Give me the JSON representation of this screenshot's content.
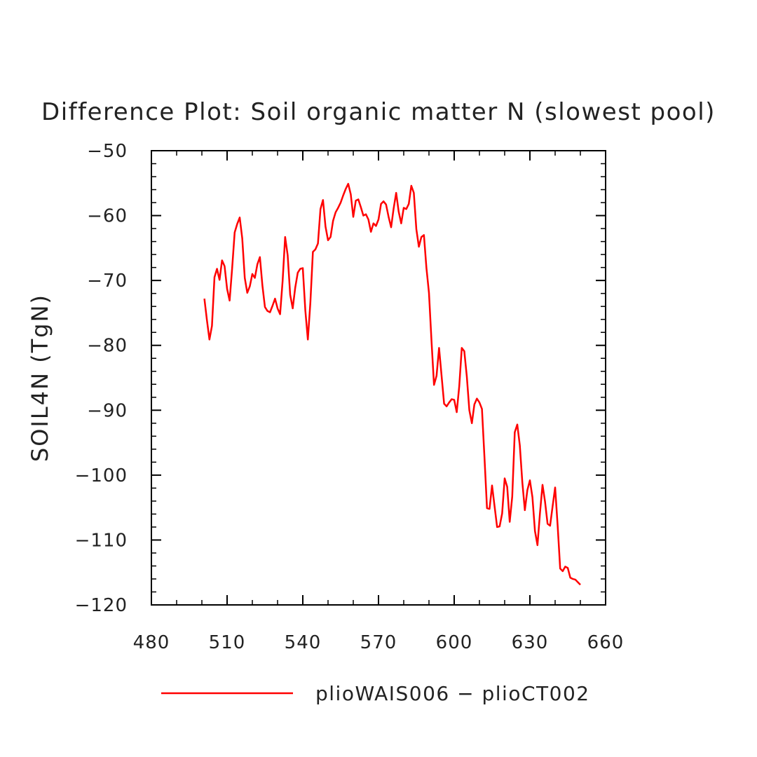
{
  "chart_data": {
    "type": "line",
    "title": "Difference Plot: Soil organic matter N (slowest pool)",
    "ylabel": "SOIL4N   (TgN)",
    "xlabel": "",
    "xlim": [
      480,
      660
    ],
    "ylim": [
      -120,
      -50
    ],
    "x_ticks": [
      480,
      510,
      540,
      570,
      600,
      630,
      660
    ],
    "y_ticks": [
      -50,
      -60,
      -70,
      -80,
      -90,
      -100,
      -110,
      -120
    ],
    "x_tick_labels": [
      "480",
      "510",
      "540",
      "570",
      "600",
      "630",
      "660"
    ],
    "y_tick_labels": [
      "−50",
      "−60",
      "−70",
      "−80",
      "−90",
      "−100",
      "−110",
      "−120"
    ],
    "grid": false,
    "legend_position": "bottom",
    "series": [
      {
        "name": "plioWAIS006 − plioCT002",
        "color": "#ff0000",
        "x": [
          501,
          502,
          503,
          504,
          505,
          506,
          507,
          508,
          509,
          510,
          511,
          512,
          513,
          514,
          515,
          516,
          517,
          518,
          519,
          520,
          521,
          522,
          523,
          524,
          525,
          526,
          527,
          528,
          529,
          530,
          531,
          532,
          533,
          534,
          535,
          536,
          537,
          538,
          539,
          540,
          541,
          542,
          543,
          544,
          545,
          546,
          547,
          548,
          549,
          550,
          551,
          552,
          553,
          554,
          555,
          556,
          557,
          558,
          559,
          560,
          561,
          562,
          563,
          564,
          565,
          566,
          567,
          568,
          569,
          570,
          571,
          572,
          573,
          574,
          575,
          576,
          577,
          578,
          579,
          580,
          581,
          582,
          583,
          584,
          585,
          586,
          587,
          588,
          589,
          590,
          591,
          592,
          593,
          594,
          595,
          596,
          597,
          598,
          599,
          600,
          601,
          602,
          603,
          604,
          605,
          606,
          607,
          608,
          609,
          610,
          611,
          612,
          613,
          614,
          615,
          616,
          617,
          618,
          619,
          620,
          621,
          622,
          623,
          624,
          625,
          626,
          627,
          628,
          629,
          630,
          631,
          632,
          633,
          634,
          635,
          636,
          637,
          638,
          639,
          640,
          641,
          642,
          643,
          644,
          645,
          646,
          647,
          648,
          649,
          650
        ],
        "y": [
          -72.8,
          -76.1,
          -79.1,
          -77.0,
          -69.5,
          -68.2,
          -69.9,
          -66.9,
          -67.8,
          -71.3,
          -73.1,
          -68.1,
          -62.6,
          -61.3,
          -60.3,
          -63.5,
          -69.6,
          -71.9,
          -70.9,
          -69.0,
          -69.6,
          -67.5,
          -66.4,
          -70.8,
          -74.1,
          -74.7,
          -74.9,
          -73.9,
          -72.8,
          -74.3,
          -75.2,
          -70.1,
          -63.3,
          -66.1,
          -72.2,
          -74.3,
          -71.1,
          -68.8,
          -68.2,
          -68.1,
          -74.6,
          -79.1,
          -73.4,
          -65.6,
          -65.2,
          -64.3,
          -59.0,
          -57.6,
          -61.7,
          -63.8,
          -63.3,
          -60.8,
          -59.5,
          -58.8,
          -58.0,
          -56.9,
          -55.9,
          -55.1,
          -56.7,
          -60.2,
          -57.7,
          -57.5,
          -58.7,
          -60.0,
          -59.8,
          -60.6,
          -62.5,
          -61.2,
          -61.6,
          -60.6,
          -58.2,
          -57.8,
          -58.3,
          -60.2,
          -61.8,
          -58.9,
          -56.5,
          -59.4,
          -61.2,
          -58.8,
          -59.0,
          -58.2,
          -55.4,
          -56.5,
          -62.1,
          -64.8,
          -63.3,
          -63.0,
          -68.1,
          -71.9,
          -79.3,
          -86.1,
          -84.7,
          -80.4,
          -84.7,
          -89.0,
          -89.4,
          -88.8,
          -88.3,
          -88.4,
          -90.3,
          -86.3,
          -80.4,
          -80.9,
          -84.8,
          -90.0,
          -92.0,
          -89.1,
          -88.2,
          -88.8,
          -89.8,
          -97.3,
          -105.1,
          -105.2,
          -101.6,
          -104.8,
          -108.0,
          -107.9,
          -105.9,
          -100.5,
          -101.8,
          -107.2,
          -103.3,
          -93.4,
          -92.2,
          -95.4,
          -101.1,
          -105.4,
          -102.3,
          -100.8,
          -103.4,
          -108.6,
          -110.8,
          -105.8,
          -101.5,
          -104.1,
          -107.5,
          -107.8,
          -104.8,
          -101.9,
          -107.8,
          -114.4,
          -114.8,
          -114.1,
          -114.3,
          -115.8,
          -116.0,
          -116.1,
          -116.5,
          -116.9
        ]
      }
    ]
  }
}
